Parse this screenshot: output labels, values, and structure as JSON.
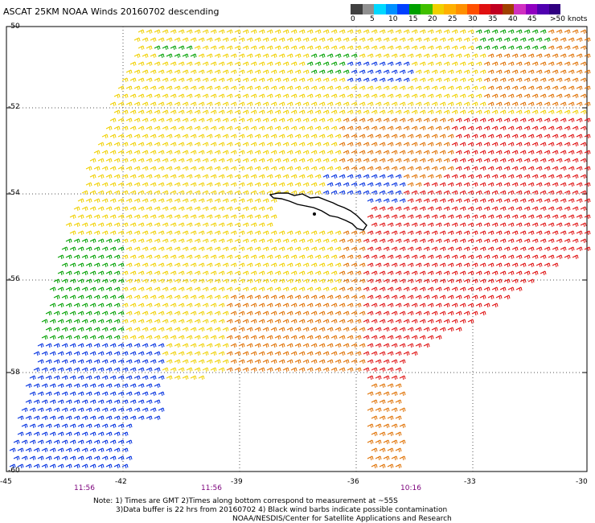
{
  "title": "ASCAT 25KM NOAA Winds 20160702 descending",
  "colorbar": {
    "labels": [
      "0",
      "5",
      "10",
      "15",
      "20",
      "25",
      "30",
      "35",
      "40",
      "45",
      ">50 knots"
    ],
    "colors": [
      "#404040",
      "#909090",
      "#00d8ff",
      "#0090ff",
      "#0040ff",
      "#00a000",
      "#40c000",
      "#f0d000",
      "#ffb000",
      "#ff9000",
      "#ff5000",
      "#e01010",
      "#c00020",
      "#a04000",
      "#d030c0",
      "#9000c0",
      "#5000b0",
      "#300080"
    ]
  },
  "y_axis_labels": [
    "-50",
    "-52",
    "-54",
    "-56",
    "-58",
    "-60"
  ],
  "x_axis_labels": [
    "-45",
    "-42",
    "-39",
    "-36",
    "-33",
    "-30"
  ],
  "time_labels": [
    "11:56",
    "11:56",
    "10:16"
  ],
  "notes": [
    "Note: 1) Times are GMT 2)Times along bottom correspond to measurement at ~55S",
    "3)Data buffer is 22 hrs from 20160702 4) Black wind barbs indicate possible contamination",
    "NOAA/NESDIS/Center for Satellite Applications and Research"
  ],
  "speed_colors": {
    "blue": "#0030e0",
    "green": "#00a000",
    "yellow": "#f0d000",
    "orange": "#e07000",
    "red": "#e01010"
  }
}
